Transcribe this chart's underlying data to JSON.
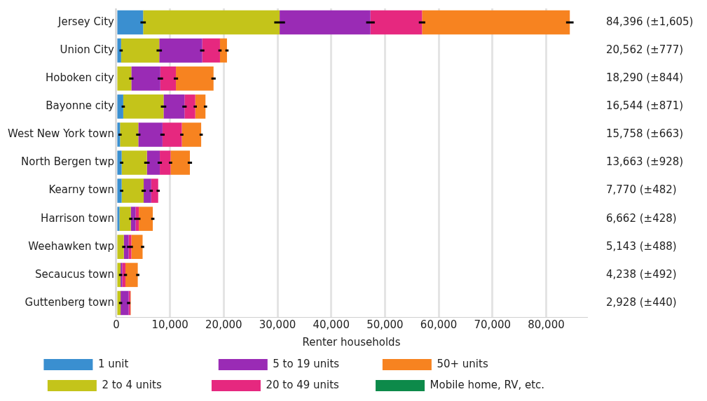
{
  "chart_data": {
    "type": "bar",
    "orientation": "horizontal",
    "stacked": true,
    "xlabel": "Renter households",
    "categories": [
      "Jersey City",
      "Union City",
      "Hoboken city",
      "Bayonne city",
      "West New York town",
      "North Bergen twp",
      "Kearny town",
      "Harrison town",
      "Weehawken twp",
      "Secaucus town",
      "Guttenberg town"
    ],
    "series": [
      {
        "name": "1 unit",
        "color": "#3a8fd0",
        "values": [
          5000,
          900,
          null,
          1300,
          700,
          1000,
          1000,
          600,
          null,
          null,
          null
        ],
        "errors": [
          500,
          300,
          null,
          300,
          300,
          300,
          300,
          null,
          null,
          null,
          null
        ]
      },
      {
        "name": "2 to 4 units",
        "color": "#c4c41a",
        "values": [
          25400,
          7100,
          2800,
          7500,
          3400,
          4700,
          4100,
          2100,
          1400,
          800,
          800
        ],
        "errors": [
          1000,
          500,
          400,
          500,
          400,
          500,
          400,
          300,
          300,
          300,
          300
        ]
      },
      {
        "name": "5 to 19 units",
        "color": "#9a2bb5",
        "values": [
          16900,
          8000,
          5400,
          3900,
          4500,
          2400,
          1400,
          900,
          900,
          300,
          1500
        ],
        "errors": [
          800,
          400,
          500,
          400,
          400,
          400,
          300,
          300,
          300,
          null,
          300
        ]
      },
      {
        "name": "20 to 49 units",
        "color": "#e6287f",
        "values": [
          9600,
          3300,
          2900,
          2000,
          3600,
          2000,
          1300,
          600,
          500,
          600,
          300
        ],
        "errors": [
          600,
          300,
          400,
          300,
          300,
          300,
          300,
          300,
          300,
          300,
          null
        ]
      },
      {
        "name": "50+ units",
        "color": "#f78320",
        "values": [
          27500,
          1300,
          7000,
          1900,
          3600,
          3600,
          null,
          2600,
          2100,
          2300,
          100
        ],
        "errors": [
          700,
          300,
          400,
          300,
          300,
          400,
          null,
          300,
          300,
          300,
          null
        ]
      },
      {
        "name": "Mobile home, RV, etc.",
        "color": "#0d8a4a",
        "values": [
          null,
          null,
          null,
          null,
          null,
          null,
          null,
          null,
          null,
          null,
          null
        ]
      }
    ],
    "annotations": [
      "84,396 (±1,605)",
      "20,562 (±777)",
      "18,290 (±844)",
      "16,544 (±871)",
      "15,758 (±663)",
      "13,663 (±928)",
      "7,770 (±482)",
      "6,662 (±428)",
      "5,143 (±488)",
      "4,238 (±492)",
      "2,928 (±440)"
    ],
    "xlim": [
      0,
      87500
    ],
    "xticks": [
      0,
      {
        "value": 10000,
        "label": "10,000"
      },
      {
        "value": 20000,
        "label": "20,000"
      },
      {
        "value": 30000,
        "label": "30,000"
      },
      {
        "value": 40000,
        "label": "40,000"
      },
      {
        "value": 50000,
        "label": "50,000"
      },
      {
        "value": 60000,
        "label": "60,000"
      },
      {
        "value": 70000,
        "label": "70,000"
      },
      {
        "value": 80000,
        "label": "80,000"
      }
    ],
    "grid": "x",
    "legend": "bottom"
  }
}
